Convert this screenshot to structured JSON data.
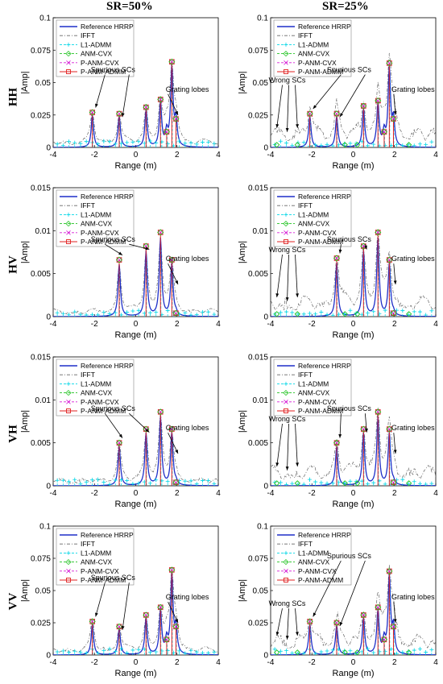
{
  "figure": {
    "columns": [
      "SR=50%",
      "SR=25%"
    ],
    "rows": [
      "HH",
      "HV",
      "VH",
      "VV"
    ],
    "legend": [
      "Reference HRRP",
      "IFFT",
      "L1-ADMM",
      "ANM-CVX",
      "P-ANM-CVX",
      "P-ANM-ADMM"
    ],
    "colors": {
      "Reference HRRP": "#1f2fc8",
      "IFFT": "#666666",
      "L1-ADMM": "#00d6e6",
      "ANM-CVX": "#22c322",
      "P-ANM-CVX": "#d61fd6",
      "P-ANM-ADMM": "#e02020"
    }
  },
  "chart_data": [
    {
      "type": "line",
      "row": "HH",
      "col": "SR=50%",
      "xlabel": "Range (m)",
      "ylabel": "|Amp|",
      "xlim": [
        -4,
        4
      ],
      "ylim": [
        0,
        0.1
      ],
      "yticks": [
        0,
        0.025,
        0.05,
        0.075,
        0.1
      ],
      "xticks": [
        -4,
        -2,
        0,
        2,
        4
      ],
      "peaks": [
        {
          "x": -2.1,
          "y": 0.027
        },
        {
          "x": -0.8,
          "y": 0.026
        },
        {
          "x": 0.5,
          "y": 0.031
        },
        {
          "x": 1.2,
          "y": 0.037
        },
        {
          "x": 1.5,
          "y": 0.012
        },
        {
          "x": 1.75,
          "y": 0.066
        },
        {
          "x": 1.95,
          "y": 0.022
        }
      ],
      "annotations": [
        "Spurious SCs",
        "Grating lobes"
      ],
      "legend_position": "top-left"
    },
    {
      "type": "line",
      "row": "HH",
      "col": "SR=25%",
      "xlabel": "Range (m)",
      "ylabel": "|Amp|",
      "xlim": [
        -4,
        4
      ],
      "ylim": [
        0,
        0.1
      ],
      "yticks": [
        0,
        0.025,
        0.05,
        0.075,
        0.1
      ],
      "xticks": [
        -4,
        -2,
        0,
        2,
        4
      ],
      "peaks": [
        {
          "x": -2.1,
          "y": 0.026
        },
        {
          "x": -0.8,
          "y": 0.026
        },
        {
          "x": 0.5,
          "y": 0.032
        },
        {
          "x": 1.2,
          "y": 0.036
        },
        {
          "x": 1.5,
          "y": 0.012
        },
        {
          "x": 1.75,
          "y": 0.065
        },
        {
          "x": 1.95,
          "y": 0.022
        }
      ],
      "annotations": [
        "Spurious SCs",
        "Wrong SCs",
        "Grating lobes"
      ],
      "legend_position": "top-left"
    },
    {
      "type": "line",
      "row": "HV",
      "col": "SR=50%",
      "xlabel": "Range (m)",
      "ylabel": "|Amp|",
      "xlim": [
        -4,
        4
      ],
      "ylim": [
        0,
        0.015
      ],
      "yticks": [
        0,
        0.005,
        0.01,
        0.015
      ],
      "xticks": [
        -4,
        -2,
        0,
        2,
        4
      ],
      "peaks": [
        {
          "x": -0.8,
          "y": 0.0066
        },
        {
          "x": 0.5,
          "y": 0.0082
        },
        {
          "x": 1.2,
          "y": 0.0098
        },
        {
          "x": 1.75,
          "y": 0.0066
        },
        {
          "x": 1.95,
          "y": 0.0004
        }
      ],
      "annotations": [
        "Spurious SCs",
        "Grating lobes"
      ],
      "legend_position": "top-left"
    },
    {
      "type": "line",
      "row": "HV",
      "col": "SR=25%",
      "xlabel": "Range (m)",
      "ylabel": "|Amp|",
      "xlim": [
        -4,
        4
      ],
      "ylim": [
        0,
        0.015
      ],
      "yticks": [
        0,
        0.005,
        0.01,
        0.015
      ],
      "xticks": [
        -4,
        -2,
        0,
        2,
        4
      ],
      "peaks": [
        {
          "x": -0.8,
          "y": 0.0068
        },
        {
          "x": 0.5,
          "y": 0.0082
        },
        {
          "x": 1.2,
          "y": 0.0098
        },
        {
          "x": 1.75,
          "y": 0.0066
        },
        {
          "x": 1.95,
          "y": 0.0004
        }
      ],
      "annotations": [
        "Spurious SCs",
        "Wrong SCs",
        "Grating lobes"
      ],
      "legend_position": "top-left"
    },
    {
      "type": "line",
      "row": "VH",
      "col": "SR=50%",
      "xlabel": "Range (m)",
      "ylabel": "|Amp|",
      "xlim": [
        -4,
        4
      ],
      "ylim": [
        0,
        0.015
      ],
      "yticks": [
        0,
        0.005,
        0.01,
        0.015
      ],
      "xticks": [
        -4,
        -2,
        0,
        2,
        4
      ],
      "peaks": [
        {
          "x": -0.8,
          "y": 0.005
        },
        {
          "x": 0.5,
          "y": 0.0066
        },
        {
          "x": 1.2,
          "y": 0.0086
        },
        {
          "x": 1.75,
          "y": 0.0066
        },
        {
          "x": 1.95,
          "y": 0.0004
        }
      ],
      "annotations": [
        "Spurious SCs",
        "Grating lobes"
      ],
      "legend_position": "top-left"
    },
    {
      "type": "line",
      "row": "VH",
      "col": "SR=25%",
      "xlabel": "Range (m)",
      "ylabel": "|Amp|",
      "xlim": [
        -4,
        4
      ],
      "ylim": [
        0,
        0.015
      ],
      "yticks": [
        0,
        0.005,
        0.01,
        0.015
      ],
      "xticks": [
        -4,
        -2,
        0,
        2,
        4
      ],
      "peaks": [
        {
          "x": -0.8,
          "y": 0.005
        },
        {
          "x": 0.5,
          "y": 0.0066
        },
        {
          "x": 1.2,
          "y": 0.0086
        },
        {
          "x": 1.75,
          "y": 0.0066
        },
        {
          "x": 1.95,
          "y": 0.0004
        }
      ],
      "annotations": [
        "Spurious SCs",
        "Wrong SCs",
        "Grating lobes"
      ],
      "legend_position": "top-left"
    },
    {
      "type": "line",
      "row": "VV",
      "col": "SR=50%",
      "xlabel": "Range (m)",
      "ylabel": "|Amp|",
      "xlim": [
        -4,
        4
      ],
      "ylim": [
        0,
        0.1
      ],
      "yticks": [
        0,
        0.025,
        0.05,
        0.075,
        0.1
      ],
      "xticks": [
        -4,
        -2,
        0,
        2,
        4
      ],
      "peaks": [
        {
          "x": -2.1,
          "y": 0.026
        },
        {
          "x": -0.8,
          "y": 0.022
        },
        {
          "x": 0.5,
          "y": 0.031
        },
        {
          "x": 1.2,
          "y": 0.037
        },
        {
          "x": 1.5,
          "y": 0.012
        },
        {
          "x": 1.75,
          "y": 0.066
        },
        {
          "x": 1.95,
          "y": 0.022
        }
      ],
      "annotations": [
        "Spurious SCs",
        "Grating lobes"
      ],
      "legend_position": "top-left"
    },
    {
      "type": "line",
      "row": "VV",
      "col": "SR=25%",
      "xlabel": "Range (m)",
      "ylabel": "|Amp|",
      "xlim": [
        -4,
        4
      ],
      "ylim": [
        0,
        0.1
      ],
      "yticks": [
        0,
        0.025,
        0.05,
        0.075,
        0.1
      ],
      "xticks": [
        -4,
        -2,
        0,
        2,
        4
      ],
      "peaks": [
        {
          "x": -2.1,
          "y": 0.026
        },
        {
          "x": -0.8,
          "y": 0.025
        },
        {
          "x": 0.5,
          "y": 0.031
        },
        {
          "x": 1.2,
          "y": 0.037
        },
        {
          "x": 1.5,
          "y": 0.012
        },
        {
          "x": 1.75,
          "y": 0.065
        },
        {
          "x": 1.95,
          "y": 0.022
        }
      ],
      "annotations": [
        "Spurious SCs",
        "Wrong SCs",
        "Grating lobes"
      ],
      "legend_position": "top-left"
    }
  ]
}
